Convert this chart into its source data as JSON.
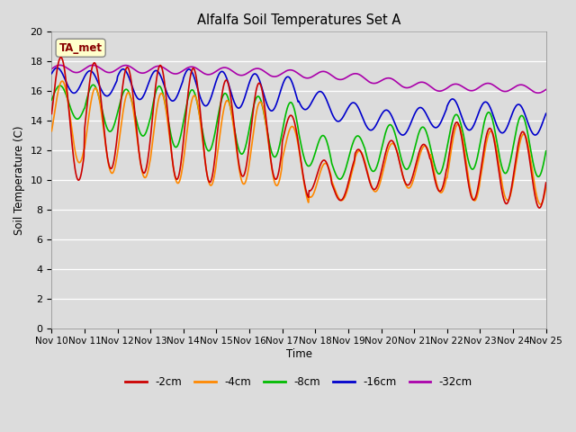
{
  "title": "Alfalfa Soil Temperatures Set A",
  "ylabel": "Soil Temperature (C)",
  "xlabel": "Time",
  "annotation": "TA_met",
  "bg_color": "#dcdcdc",
  "ylim": [
    0,
    20
  ],
  "yticks": [
    0,
    2,
    4,
    6,
    8,
    10,
    12,
    14,
    16,
    18,
    20
  ],
  "x_labels": [
    "Nov 10",
    "Nov 11",
    "Nov 12",
    "Nov 13",
    "Nov 14",
    "Nov 15",
    "Nov 16",
    "Nov 17",
    "Nov 18",
    "Nov 19",
    "Nov 20",
    "Nov 21",
    "Nov 22",
    "Nov 23",
    "Nov 24",
    "Nov 25"
  ],
  "series": {
    "-2cm": {
      "color": "#cc0000",
      "lw": 1.2
    },
    "-4cm": {
      "color": "#ff8800",
      "lw": 1.2
    },
    "-8cm": {
      "color": "#00bb00",
      "lw": 1.2
    },
    "-16cm": {
      "color": "#0000cc",
      "lw": 1.2
    },
    "-32cm": {
      "color": "#aa00aa",
      "lw": 1.2
    }
  }
}
